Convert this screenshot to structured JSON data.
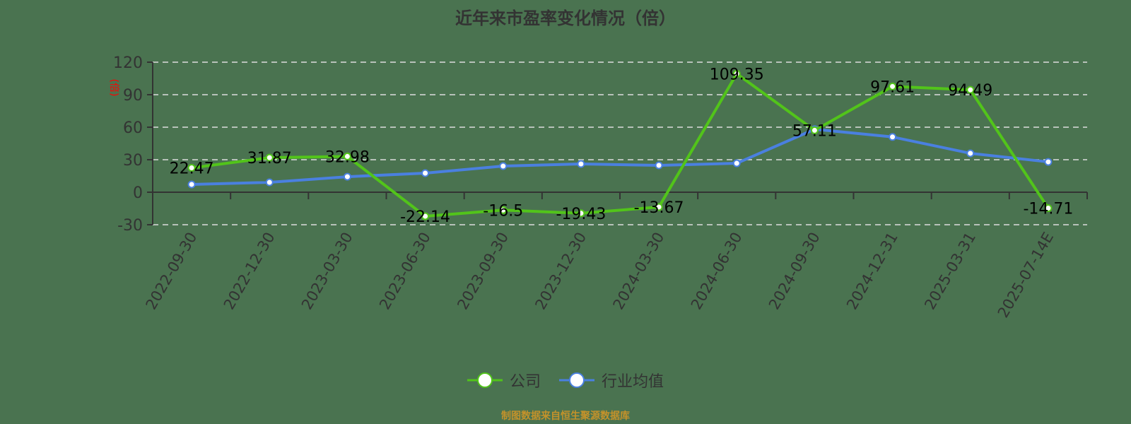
{
  "title": "近年来市盈率变化情况（倍）",
  "y_axis_label": "(倍)",
  "legend": [
    {
      "label": "公司",
      "color": "#52c41a"
    },
    {
      "label": "行业均值",
      "color": "#4a80e0"
    }
  ],
  "footer": "制图数据来自恒生聚源数据库",
  "chart_data": {
    "type": "line",
    "title": "近年来市盈率变化情况（倍）",
    "xlabel": "",
    "ylabel": "(倍)",
    "ylim": [
      -30,
      120
    ],
    "yticks": [
      -30,
      0,
      30,
      60,
      90,
      120
    ],
    "grid": "horizontal dashed",
    "legend_position": "bottom",
    "categories": [
      "2022-09-30",
      "2022-12-30",
      "2023-03-30",
      "2023-06-30",
      "2023-09-30",
      "2023-12-30",
      "2024-03-30",
      "2024-06-30",
      "2024-09-30",
      "2024-12-31",
      "2025-03-31",
      "2025-07-14E"
    ],
    "series": [
      {
        "name": "公司",
        "color": "#52c41a",
        "values": [
          22.47,
          31.87,
          32.98,
          -22.14,
          -16.5,
          -19.43,
          -13.67,
          109.35,
          57.11,
          97.61,
          94.49,
          -14.71
        ],
        "labels_shown": true
      },
      {
        "name": "行业均值",
        "color": "#4a80e0",
        "values": [
          7.2,
          9.1,
          14.3,
          17.6,
          24.1,
          26.1,
          24.8,
          26.7,
          58.1,
          51.0,
          35.9,
          28.0
        ],
        "labels_shown": false
      }
    ]
  }
}
